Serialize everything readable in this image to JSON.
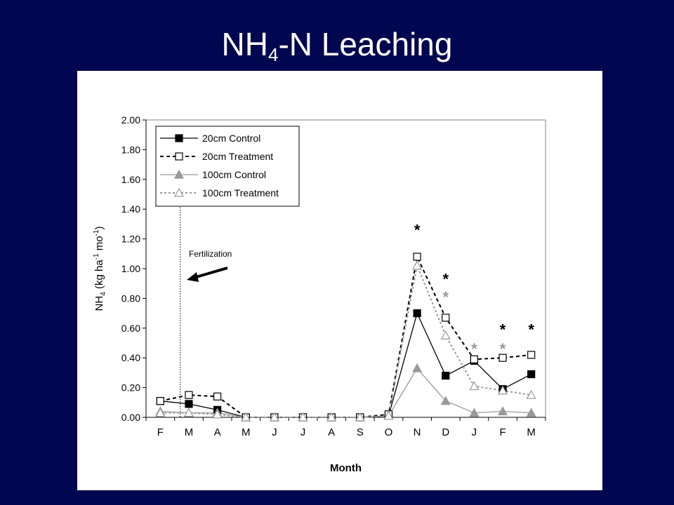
{
  "slide": {
    "title_main": "NH",
    "title_sub": "4",
    "title_rest": "-N Leaching"
  },
  "chart_data": {
    "type": "line",
    "categories": [
      "F",
      "M",
      "A",
      "M",
      "J",
      "J",
      "A",
      "S",
      "O",
      "N",
      "D",
      "J",
      "F",
      "M"
    ],
    "xlabel": "Month",
    "ylabel": {
      "p1": "NH",
      "p1_sub": "4",
      "p2": " (kg ha",
      "p2_sup": "-1",
      "p3": " mo",
      "p3_sup": "-1",
      "p4": ")"
    },
    "ylim": [
      0,
      2.0
    ],
    "yticks": [
      "0.00",
      "0.20",
      "0.40",
      "0.60",
      "0.80",
      "1.00",
      "1.20",
      "1.40",
      "1.60",
      "1.80",
      "2.00"
    ],
    "ytick_values": [
      0,
      0.2,
      0.4,
      0.6,
      0.8,
      1.0,
      1.2,
      1.4,
      1.6,
      1.8,
      2.0
    ],
    "grid": false,
    "legend_position": "top-left",
    "series": [
      {
        "name": "20cm Control",
        "values": [
          0.11,
          0.09,
          0.05,
          0,
          0,
          0,
          0,
          0,
          0.01,
          0.7,
          0.28,
          0.38,
          0.19,
          0.29
        ],
        "color": "#000000",
        "dash": "solid",
        "marker": "square",
        "filled": true
      },
      {
        "name": "20cm Treatment",
        "values": [
          0.11,
          0.15,
          0.14,
          0,
          0,
          0,
          0,
          0,
          0.02,
          1.08,
          0.67,
          0.39,
          0.4,
          0.42
        ],
        "color": "#000000",
        "dash": "dashed",
        "marker": "square",
        "filled": false
      },
      {
        "name": "100cm Control",
        "values": [
          0.04,
          0.03,
          0.03,
          0,
          0,
          0,
          0,
          0,
          0.01,
          0.33,
          0.11,
          0.03,
          0.04,
          0.03
        ],
        "color": "#999999",
        "dash": "solid",
        "marker": "triangle",
        "filled": true
      },
      {
        "name": "100cm Treatment",
        "values": [
          0.03,
          0.03,
          0.02,
          0,
          0,
          0,
          0,
          0,
          0.01,
          1.02,
          0.55,
          0.21,
          0.18,
          0.15
        ],
        "color": "#999999",
        "dash": "dotted",
        "marker": "triangle",
        "filled": false
      }
    ],
    "annotations": {
      "fertilization_label": "Fertilization",
      "fertilization_x_index": 0.7,
      "significance_symbol": "*",
      "significance_markers": [
        {
          "x_index": 9,
          "level": 1.28,
          "color": "#000000"
        },
        {
          "x_index": 10,
          "level": 0.95,
          "color": "#000000"
        },
        {
          "x_index": 10,
          "level": 0.83,
          "color": "#999999"
        },
        {
          "x_index": 11,
          "level": 0.48,
          "color": "#999999"
        },
        {
          "x_index": 12,
          "level": 0.61,
          "color": "#000000"
        },
        {
          "x_index": 12,
          "level": 0.48,
          "color": "#999999"
        },
        {
          "x_index": 13,
          "level": 0.61,
          "color": "#000000"
        }
      ]
    }
  }
}
